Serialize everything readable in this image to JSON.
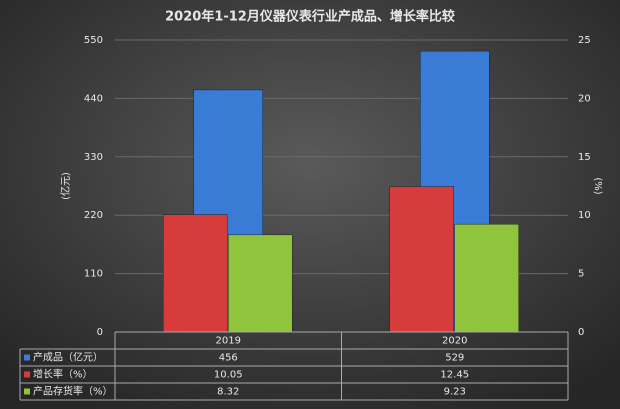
{
  "chart_data": {
    "type": "bar",
    "title": "2020年1-12月仪器仪表行业产成品、增长率比较",
    "categories": [
      "2019",
      "2020"
    ],
    "ylabel": "(亿元)",
    "y2label": "(%)",
    "ylim": [
      0,
      550
    ],
    "yticks": [
      0,
      110,
      220,
      330,
      440,
      550
    ],
    "y2lim": [
      0,
      25
    ],
    "y2ticks": [
      0,
      5,
      10,
      15,
      20,
      25
    ],
    "grid": true,
    "series": [
      {
        "name": "产成品（亿元）",
        "color": "#3a7bd5",
        "values": [
          456,
          529
        ]
      },
      {
        "name": "增长率（%）",
        "color": "#d63c3c",
        "values": [
          10.05,
          12.45
        ],
        "axis": "y2"
      },
      {
        "name": "产品存货率（%）",
        "color": "#8fc43c",
        "values": [
          8.32,
          9.23
        ],
        "axis": "y2"
      }
    ]
  }
}
